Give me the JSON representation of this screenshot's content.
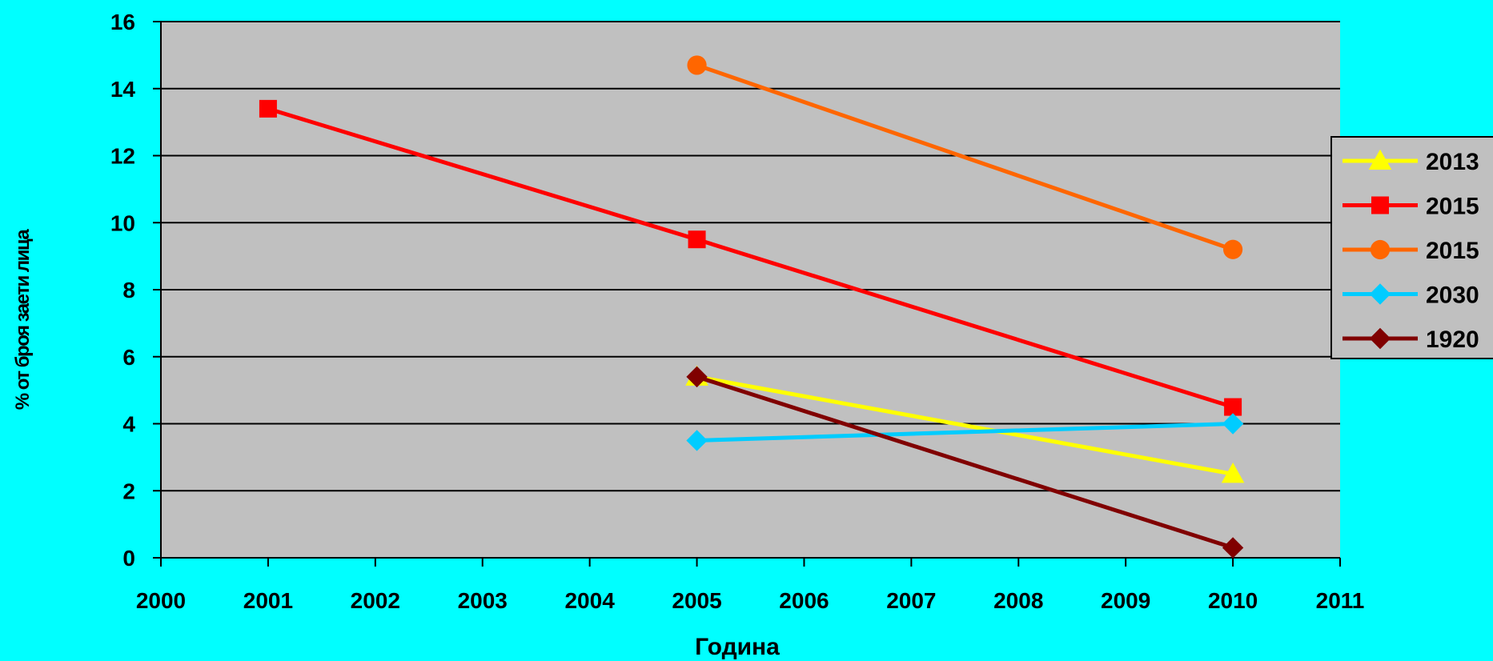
{
  "colors": {
    "background": "#00FFFF",
    "plot_area": "#C0C0C0",
    "grid": "#000000"
  },
  "chart_data": {
    "type": "line",
    "title": "",
    "xlabel": "Година",
    "ylabel": "% от броя заети лица",
    "xlim": [
      2000,
      2011
    ],
    "ylim": [
      0,
      16
    ],
    "x_ticks": [
      "2000",
      "2001",
      "2002",
      "2003",
      "2004",
      "2005",
      "2006",
      "2007",
      "2008",
      "2009",
      "2010",
      "2011"
    ],
    "y_ticks": [
      "0",
      "2",
      "4",
      "6",
      "8",
      "10",
      "12",
      "14",
      "16"
    ],
    "grid": true,
    "legend_position": "right",
    "series": [
      {
        "name": "2013",
        "color": "#FFFF00",
        "marker": "triangle",
        "points": [
          {
            "x": 2005,
            "y": 5.4
          },
          {
            "x": 2010,
            "y": 2.5
          }
        ]
      },
      {
        "name": "2015",
        "color": "#FF0000",
        "marker": "square",
        "points": [
          {
            "x": 2001,
            "y": 13.4
          },
          {
            "x": 2005,
            "y": 9.5
          },
          {
            "x": 2010,
            "y": 4.5
          }
        ]
      },
      {
        "name": "2015",
        "color": "#FF6600",
        "marker": "circle",
        "points": [
          {
            "x": 2005,
            "y": 14.7
          },
          {
            "x": 2010,
            "y": 9.2
          }
        ]
      },
      {
        "name": "2030",
        "color": "#00CCFF",
        "marker": "diamond",
        "points": [
          {
            "x": 2005,
            "y": 3.5
          },
          {
            "x": 2010,
            "y": 4.0
          }
        ]
      },
      {
        "name": "1920",
        "color": "#800000",
        "marker": "diamond",
        "points": [
          {
            "x": 2005,
            "y": 5.4
          },
          {
            "x": 2010,
            "y": 0.3
          }
        ]
      }
    ]
  }
}
